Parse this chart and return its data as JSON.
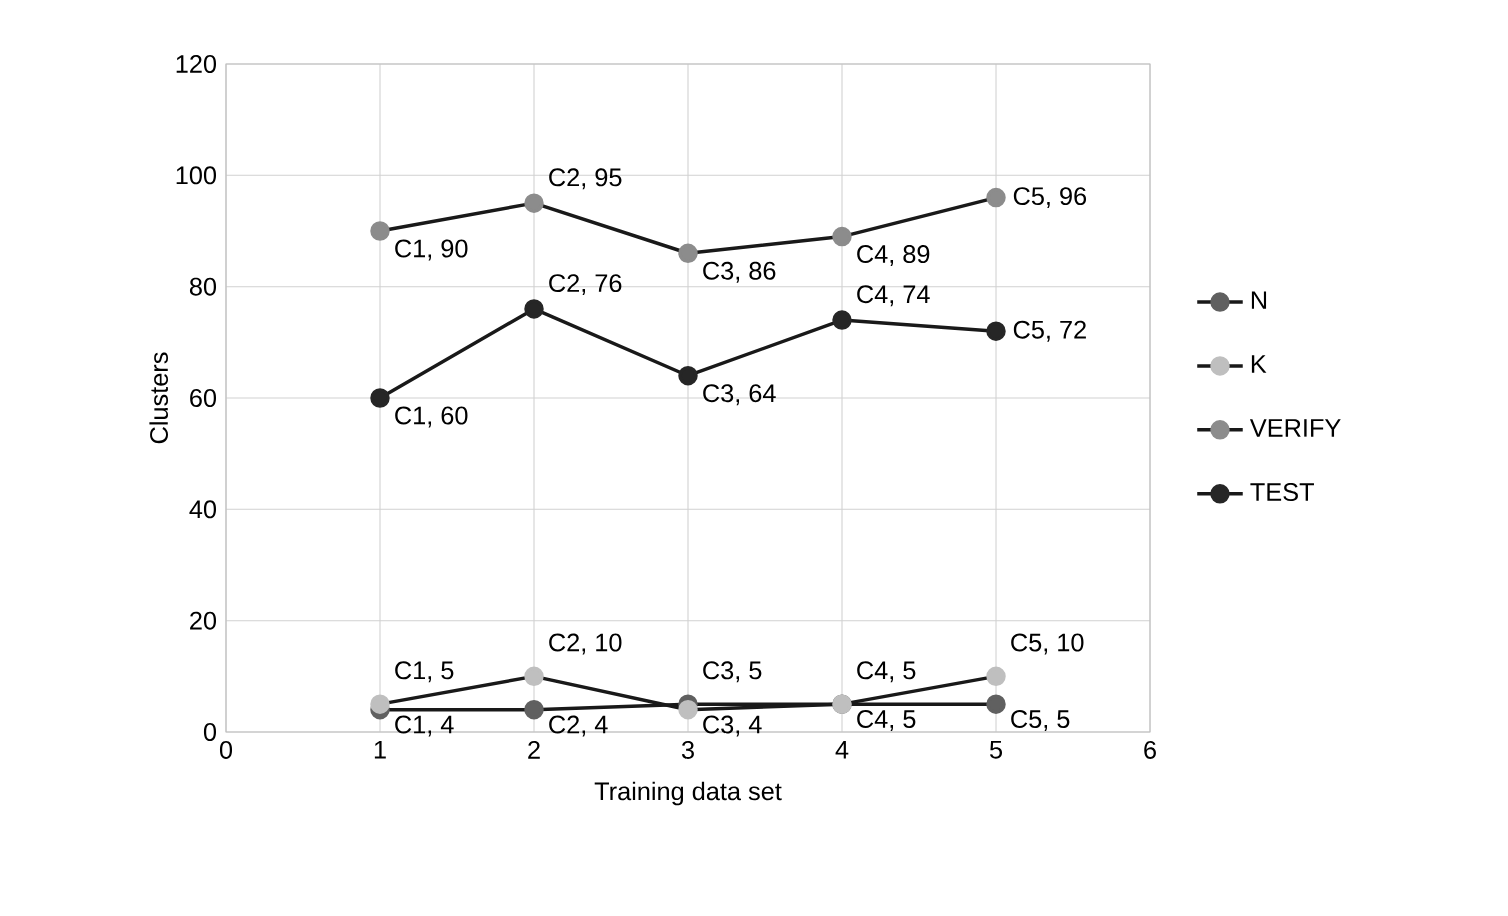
{
  "chart_data": {
    "type": "line",
    "xlabel": "Training data set",
    "ylabel": "Clusters",
    "x": [
      1,
      2,
      3,
      4,
      5
    ],
    "xlim": [
      0,
      6
    ],
    "xticks": [
      0,
      1,
      2,
      3,
      4,
      5,
      6
    ],
    "ylim": [
      0,
      120
    ],
    "yticks": [
      0,
      20,
      40,
      60,
      80,
      100,
      120
    ],
    "grid": true,
    "legend": "right",
    "marker": "circle",
    "line_style": "solid",
    "series": [
      {
        "name": "N",
        "color": "#606060",
        "values": [
          4,
          4,
          5,
          5,
          5
        ],
        "value_labels": [
          "C1, 4",
          "C2, 4",
          "C3, 5",
          "C4, 5",
          "C5, 5"
        ]
      },
      {
        "name": "K",
        "color": "#bfbfbf",
        "values": [
          5,
          10,
          4,
          5,
          10
        ],
        "value_labels": [
          "C1, 5",
          "C2, 10",
          "C3, 4",
          "C4, 5",
          "C5, 10"
        ]
      },
      {
        "name": "VERIFY",
        "color": "#8c8c8c",
        "values": [
          90,
          95,
          86,
          89,
          96
        ],
        "value_labels": [
          "C1, 90",
          "C2, 95",
          "C3, 86",
          "C4, 89",
          "C5, 96"
        ]
      },
      {
        "name": "TEST",
        "color": "#262626",
        "values": [
          60,
          76,
          64,
          74,
          72
        ],
        "value_labels": [
          "C1, 60",
          "C2, 76",
          "C3, 64",
          "C4, 74",
          "C5, 72"
        ]
      }
    ]
  }
}
